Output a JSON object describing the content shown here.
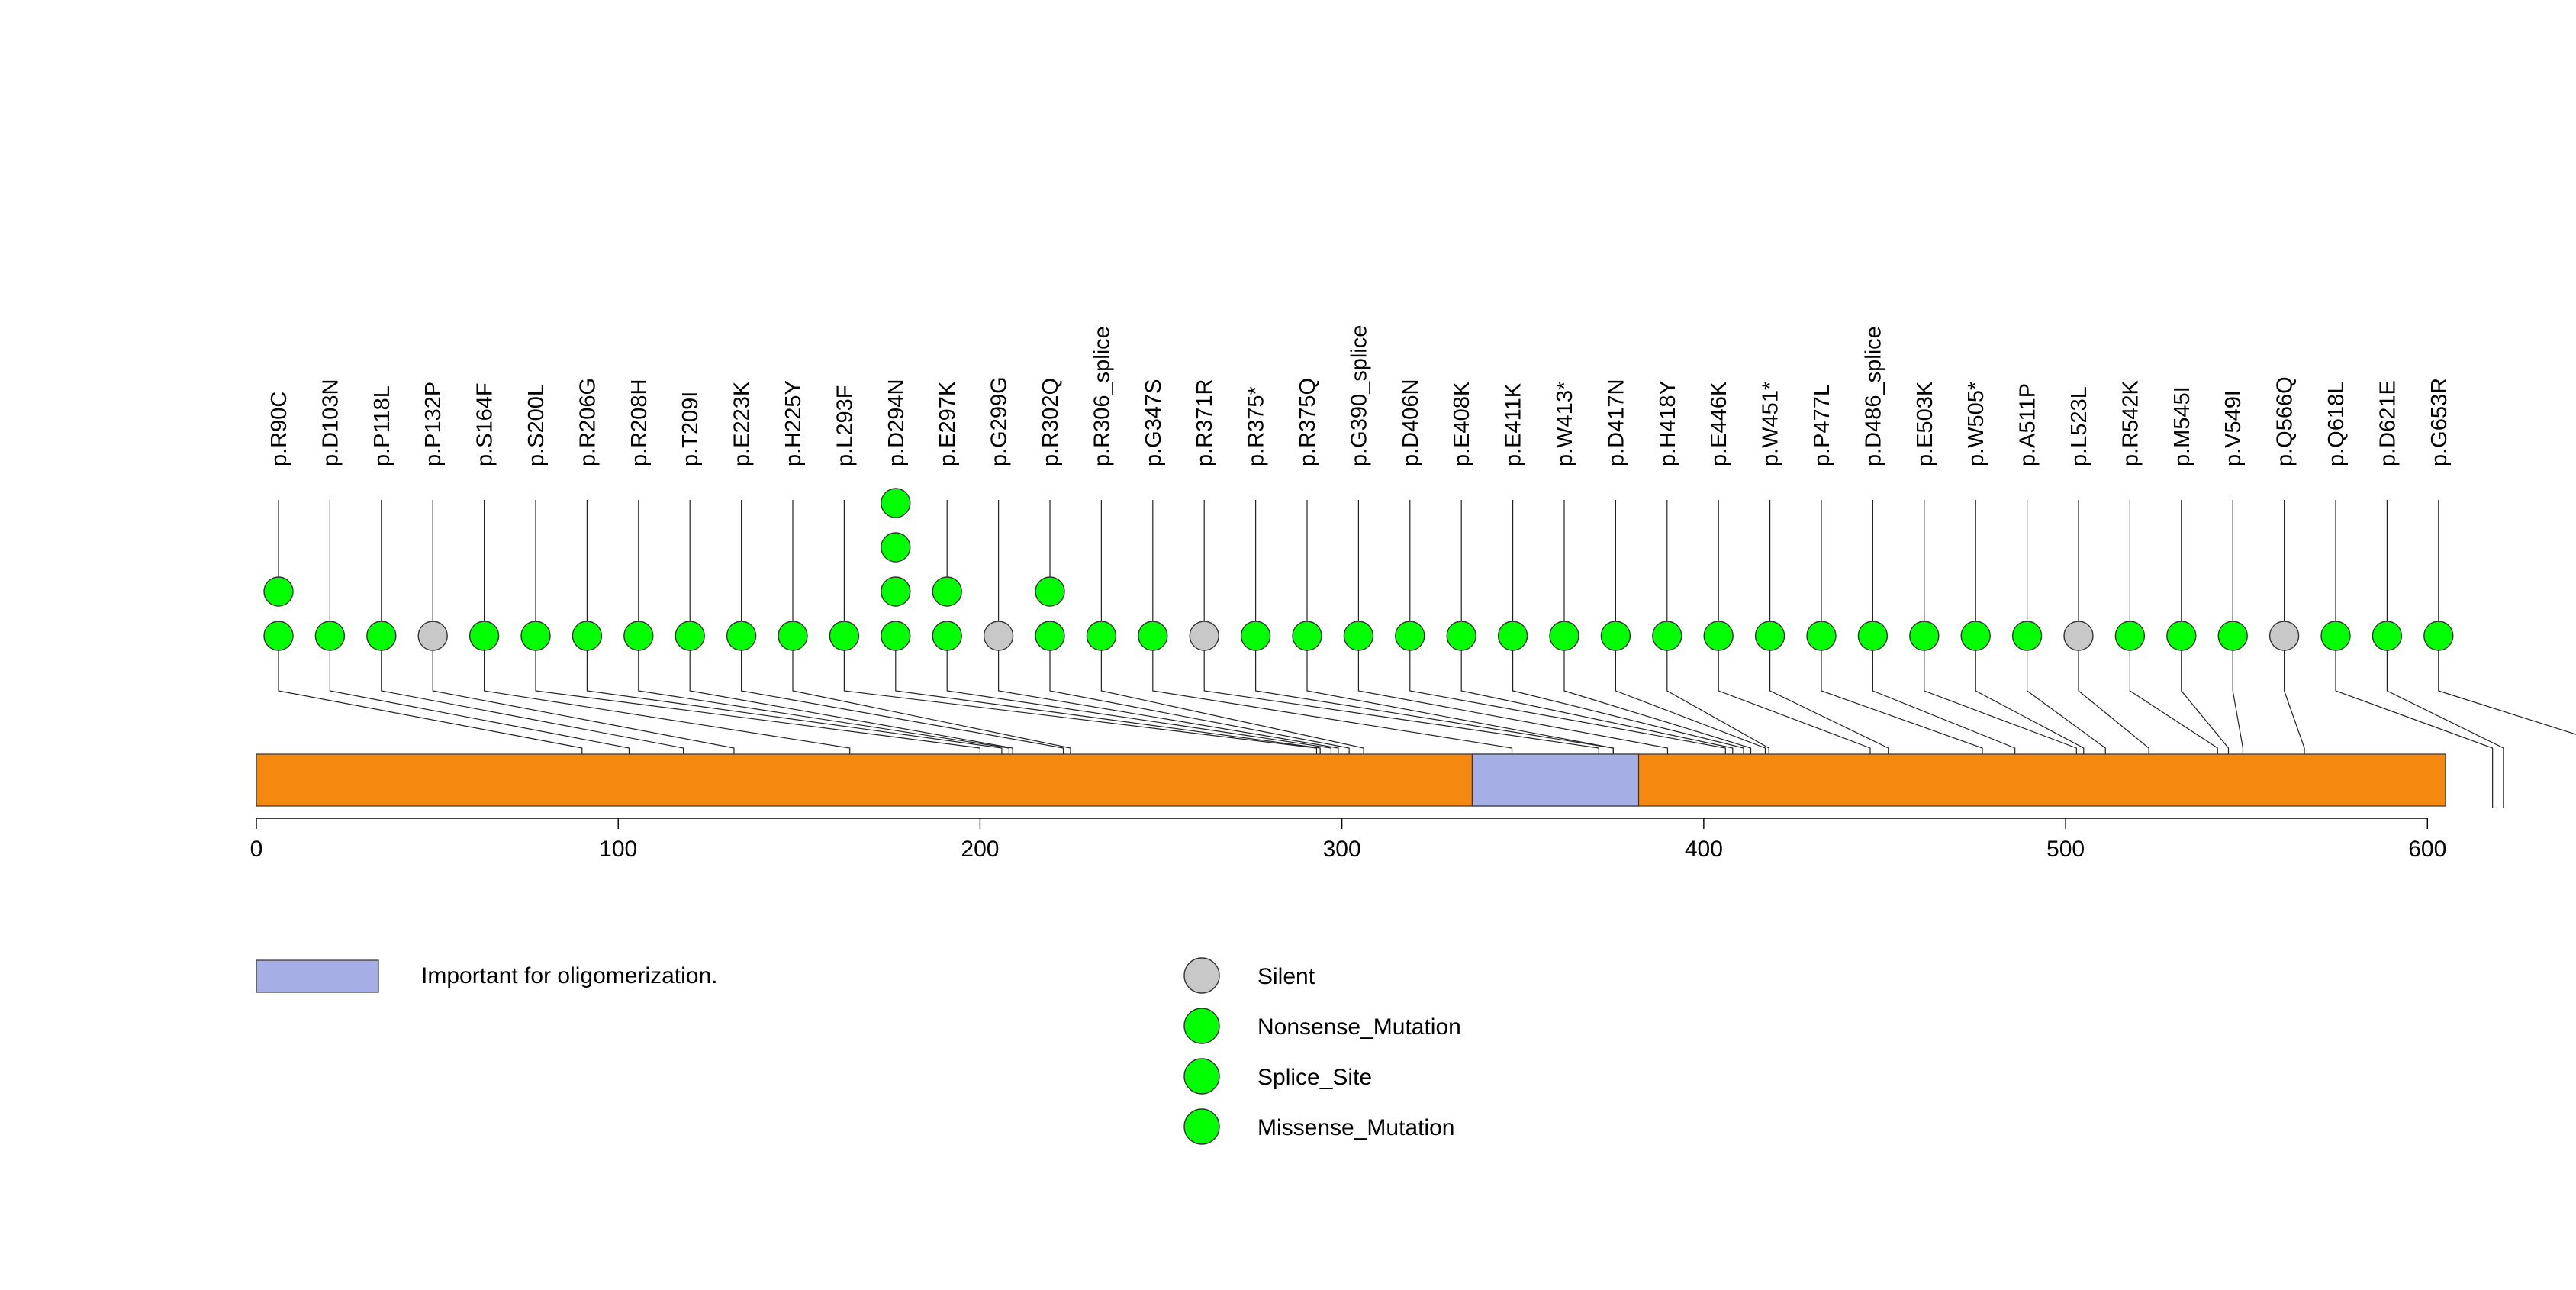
{
  "chart_data": {
    "type": "lollipop",
    "title": "",
    "xlabel": "",
    "ylabel": "",
    "protein_length": 605,
    "xlim": [
      0,
      605
    ],
    "xticks": [
      0,
      100,
      200,
      300,
      400,
      500,
      600
    ],
    "domains": [
      {
        "name": "Important for oligomerization.",
        "start": 336,
        "end": 382,
        "color": "#a6aee6"
      }
    ],
    "backbone_color": "#f5890f",
    "categories": [
      {
        "name": "Silent",
        "color": "#c8c8c8"
      },
      {
        "name": "Nonsense_Mutation",
        "color": "#00ff00"
      },
      {
        "name": "Splice_Site",
        "color": "#00ff00"
      },
      {
        "name": "Missense_Mutation",
        "color": "#00ff00"
      }
    ],
    "mutations": [
      {
        "label": "p.R90C",
        "position": 90,
        "count": 2,
        "type": "Missense_Mutation"
      },
      {
        "label": "p.D103N",
        "position": 103,
        "count": 1,
        "type": "Missense_Mutation"
      },
      {
        "label": "p.P118L",
        "position": 118,
        "count": 1,
        "type": "Missense_Mutation"
      },
      {
        "label": "p.P132P",
        "position": 132,
        "count": 1,
        "type": "Silent"
      },
      {
        "label": "p.S164F",
        "position": 164,
        "count": 1,
        "type": "Missense_Mutation"
      },
      {
        "label": "p.S200L",
        "position": 200,
        "count": 1,
        "type": "Missense_Mutation"
      },
      {
        "label": "p.R206G",
        "position": 206,
        "count": 1,
        "type": "Missense_Mutation"
      },
      {
        "label": "p.R208H",
        "position": 208,
        "count": 1,
        "type": "Missense_Mutation"
      },
      {
        "label": "p.T209I",
        "position": 209,
        "count": 1,
        "type": "Missense_Mutation"
      },
      {
        "label": "p.E223K",
        "position": 223,
        "count": 1,
        "type": "Missense_Mutation"
      },
      {
        "label": "p.H225Y",
        "position": 225,
        "count": 1,
        "type": "Missense_Mutation"
      },
      {
        "label": "p.L293F",
        "position": 293,
        "count": 1,
        "type": "Missense_Mutation"
      },
      {
        "label": "p.D294N",
        "position": 294,
        "count": 4,
        "type": "Missense_Mutation"
      },
      {
        "label": "p.E297K",
        "position": 297,
        "count": 2,
        "type": "Missense_Mutation"
      },
      {
        "label": "p.G299G",
        "position": 299,
        "count": 1,
        "type": "Silent"
      },
      {
        "label": "p.R302Q",
        "position": 302,
        "count": 2,
        "type": "Missense_Mutation"
      },
      {
        "label": "p.R306_splice",
        "position": 306,
        "count": 1,
        "type": "Splice_Site"
      },
      {
        "label": "p.G347S",
        "position": 347,
        "count": 1,
        "type": "Missense_Mutation"
      },
      {
        "label": "p.R371R",
        "position": 371,
        "count": 1,
        "type": "Silent"
      },
      {
        "label": "p.R375*",
        "position": 375,
        "count": 1,
        "type": "Nonsense_Mutation"
      },
      {
        "label": "p.R375Q",
        "position": 375,
        "count": 1,
        "type": "Missense_Mutation"
      },
      {
        "label": "p.G390_splice",
        "position": 390,
        "count": 1,
        "type": "Splice_Site"
      },
      {
        "label": "p.D406N",
        "position": 406,
        "count": 1,
        "type": "Missense_Mutation"
      },
      {
        "label": "p.E408K",
        "position": 408,
        "count": 1,
        "type": "Missense_Mutation"
      },
      {
        "label": "p.E411K",
        "position": 411,
        "count": 1,
        "type": "Missense_Mutation"
      },
      {
        "label": "p.W413*",
        "position": 413,
        "count": 1,
        "type": "Nonsense_Mutation"
      },
      {
        "label": "p.D417N",
        "position": 417,
        "count": 1,
        "type": "Missense_Mutation"
      },
      {
        "label": "p.H418Y",
        "position": 418,
        "count": 1,
        "type": "Missense_Mutation"
      },
      {
        "label": "p.E446K",
        "position": 446,
        "count": 1,
        "type": "Missense_Mutation"
      },
      {
        "label": "p.W451*",
        "position": 451,
        "count": 1,
        "type": "Nonsense_Mutation"
      },
      {
        "label": "p.P477L",
        "position": 477,
        "count": 1,
        "type": "Missense_Mutation"
      },
      {
        "label": "p.D486_splice",
        "position": 486,
        "count": 1,
        "type": "Splice_Site"
      },
      {
        "label": "p.E503K",
        "position": 503,
        "count": 1,
        "type": "Missense_Mutation"
      },
      {
        "label": "p.W505*",
        "position": 505,
        "count": 1,
        "type": "Nonsense_Mutation"
      },
      {
        "label": "p.A511P",
        "position": 511,
        "count": 1,
        "type": "Missense_Mutation"
      },
      {
        "label": "p.L523L",
        "position": 523,
        "count": 1,
        "type": "Silent"
      },
      {
        "label": "p.R542K",
        "position": 542,
        "count": 1,
        "type": "Missense_Mutation"
      },
      {
        "label": "p.M545I",
        "position": 545,
        "count": 1,
        "type": "Missense_Mutation"
      },
      {
        "label": "p.V549I",
        "position": 549,
        "count": 1,
        "type": "Missense_Mutation"
      },
      {
        "label": "p.Q566Q",
        "position": 566,
        "count": 1,
        "type": "Silent"
      },
      {
        "label": "p.Q618L",
        "position": 618,
        "count": 1,
        "type": "Missense_Mutation"
      },
      {
        "label": "p.D621E",
        "position": 621,
        "count": 1,
        "type": "Missense_Mutation"
      },
      {
        "label": "p.G653R",
        "position": 653,
        "count": 1,
        "type": "Missense_Mutation"
      }
    ]
  }
}
